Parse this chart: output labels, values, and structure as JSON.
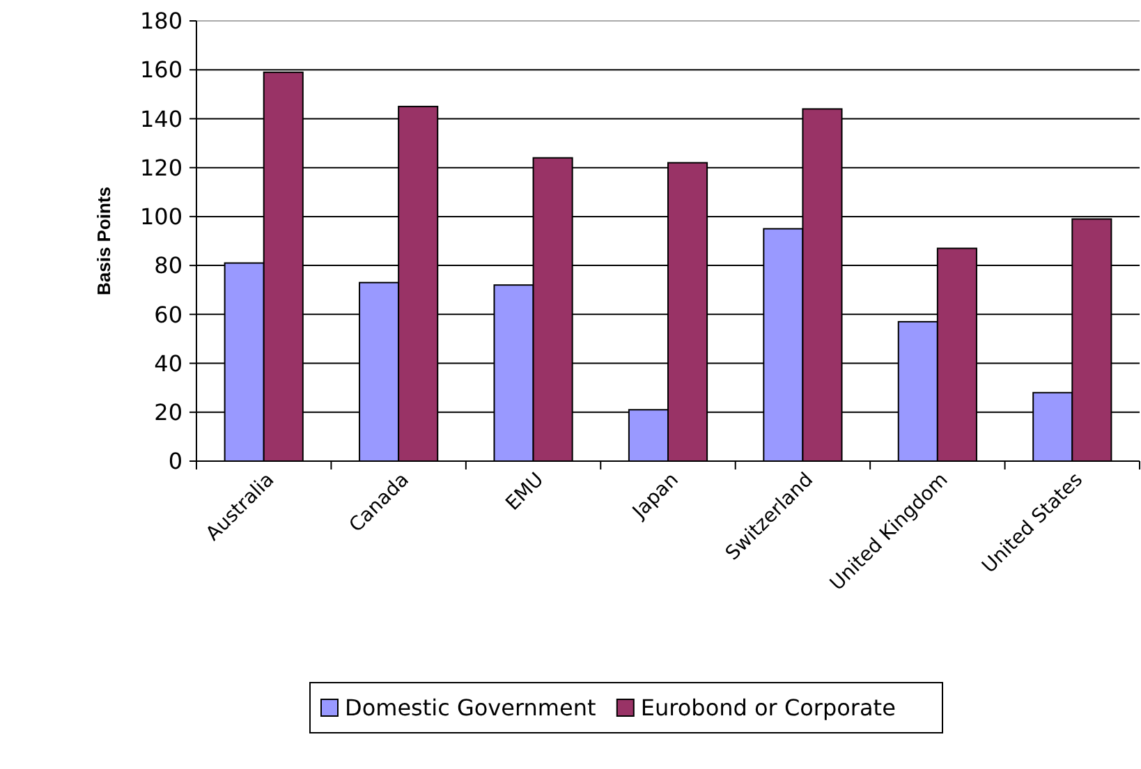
{
  "chart_data": {
    "type": "bar",
    "ylabel": "Basis Points",
    "categories": [
      "Australia",
      "Canada",
      "EMU",
      "Japan",
      "Switzerland",
      "United Kingdom",
      "United States"
    ],
    "series": [
      {
        "name": "Domestic Government",
        "color": "#9999ff",
        "values": [
          81,
          73,
          72,
          21,
          95,
          57,
          28
        ]
      },
      {
        "name": "Eurobond or Corporate",
        "color": "#993366",
        "values": [
          159,
          145,
          124,
          122,
          144,
          87,
          99
        ]
      }
    ],
    "ylim": [
      0,
      180
    ],
    "yticks": [
      0,
      20,
      40,
      60,
      80,
      100,
      120,
      140,
      160,
      180
    ],
    "grid": "y",
    "legend": "bottom"
  }
}
